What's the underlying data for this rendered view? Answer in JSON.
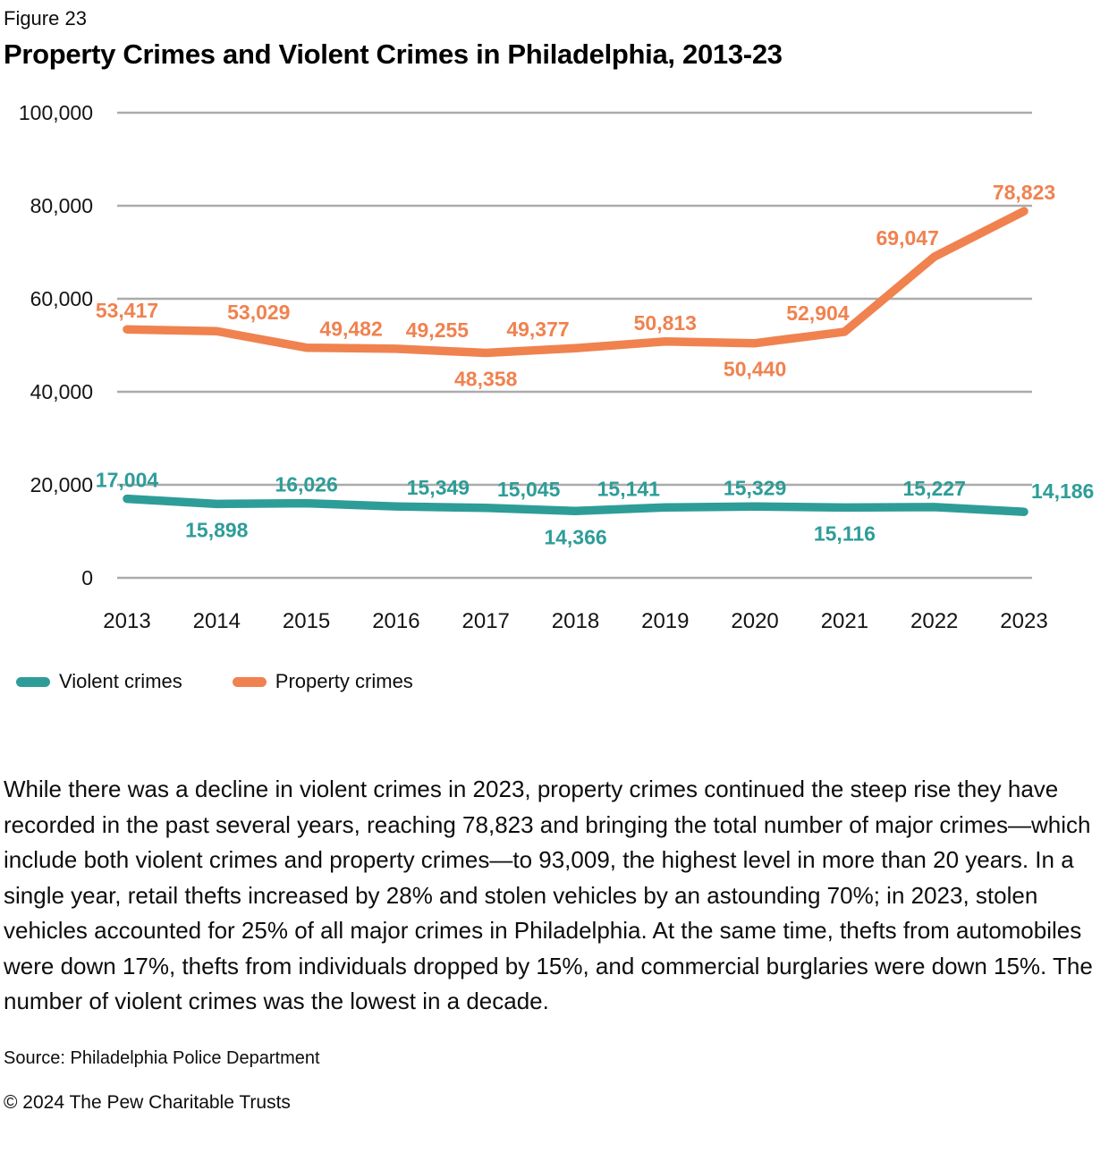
{
  "figure_label": "Figure 23",
  "title": "Property Crimes and Violent Crimes in Philadelphia, 2013-23",
  "chart_data": {
    "type": "line",
    "x": [
      "2013",
      "2014",
      "2015",
      "2016",
      "2017",
      "2018",
      "2019",
      "2020",
      "2021",
      "2022",
      "2023"
    ],
    "series": [
      {
        "name": "Violent crimes",
        "color": "#2E9D98",
        "values": [
          17004,
          15898,
          16026,
          15349,
          15045,
          14366,
          15141,
          15329,
          15116,
          15227,
          14186
        ],
        "label_pos": [
          "above",
          "below",
          "above",
          "above",
          "above",
          "below",
          "above",
          "above",
          "below",
          "above",
          "right"
        ],
        "label_dx": [
          0,
          0,
          0,
          47,
          48,
          0,
          -41,
          0,
          0,
          0,
          0
        ]
      },
      {
        "name": "Property crimes",
        "color": "#F0824F",
        "values": [
          53417,
          53029,
          49482,
          49255,
          48358,
          49377,
          50813,
          50440,
          52904,
          69047,
          78823
        ],
        "label_pos": [
          "above",
          "above",
          "above",
          "above",
          "below",
          "above",
          "above",
          "below",
          "above",
          "above",
          "above"
        ],
        "label_dx": [
          0,
          47,
          50,
          46,
          0,
          -42,
          0,
          0,
          -30,
          -30,
          0
        ]
      }
    ],
    "title": "Property Crimes and Violent Crimes in Philadelphia, 2013-23",
    "xlabel": "",
    "ylabel": "",
    "ylim": [
      0,
      100000
    ],
    "yticks": [
      0,
      20000,
      40000,
      60000,
      80000,
      100000
    ],
    "ytick_labels": [
      "0",
      "20,000",
      "40,000",
      "60,000",
      "80,000",
      "100,000"
    ],
    "grid": "horizontal",
    "legend_position": "bottom-left",
    "data_labels": true
  },
  "legend": [
    {
      "label": "Violent crimes",
      "color": "#2E9D98"
    },
    {
      "label": "Property crimes",
      "color": "#F0824F"
    }
  ],
  "commentary": "While there was a decline in violent crimes in 2023, property crimes continued the steep rise they have recorded in the past several years, reaching 78,823 and bringing the total number of major crimes—which include both violent crimes and property crimes—to 93,009, the highest level in more than 20 years. In a single year, retail thefts increased by 28% and stolen vehicles by an astounding 70%; in 2023, stolen vehicles accounted for 25% of all major crimes in Philadelphia. At the same time, thefts from automobiles were down 17%, thefts from individuals dropped by 15%, and commercial burglaries were down 15%. The number of violent crimes was the lowest in a decade.",
  "source": "Source: Philadelphia Police Department",
  "copyright": "© 2024 The Pew Charitable Trusts"
}
